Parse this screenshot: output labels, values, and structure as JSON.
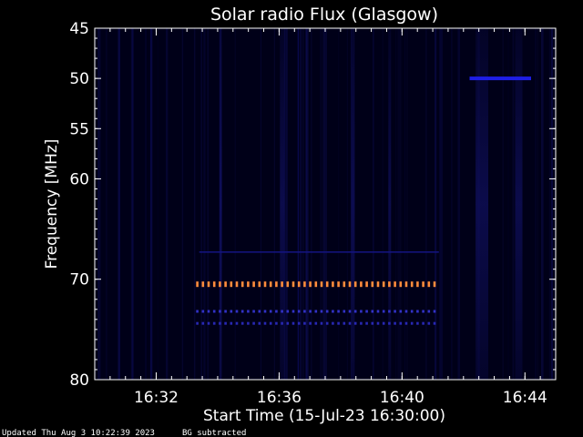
{
  "chart_data": {
    "type": "heatmap",
    "title": "Solar radio Flux (Glasgow)",
    "xlabel": "Start Time (15-Jul-23 16:30:00)",
    "ylabel": "Frequency [MHz]",
    "x_unit": "minutes after 16:30:00",
    "xlim": [
      0,
      15
    ],
    "ylim": [
      45,
      80
    ],
    "y_scale": "linear, frequency increasing downward",
    "x_ticks": [
      {
        "value": 2,
        "label": "16:32"
      },
      {
        "value": 6,
        "label": "16:36"
      },
      {
        "value": 10,
        "label": "16:40"
      },
      {
        "value": 14,
        "label": "16:44"
      }
    ],
    "y_ticks": [
      {
        "value": 45,
        "label": "45"
      },
      {
        "value": 50,
        "label": "50"
      },
      {
        "value": 55,
        "label": "55"
      },
      {
        "value": 60,
        "label": "60"
      },
      {
        "value": 70,
        "label": "70"
      },
      {
        "value": 80,
        "label": "80"
      }
    ],
    "colors": {
      "background": "#000000",
      "plot_background": "#000018",
      "axes": "#ffffff",
      "weak_emission": "#0a0ab4",
      "strong_emission": "#ff8c3c"
    },
    "features": [
      {
        "kind": "horizontal band",
        "freq_mhz": 50,
        "t_start": 12.2,
        "t_end": 14.2,
        "intensity": "medium",
        "color": "#1e1ee6"
      },
      {
        "kind": "dashed band",
        "freq_mhz": 70.5,
        "t_start": 3.3,
        "t_end": 11.2,
        "intensity": "high",
        "color": "#ff8c3c"
      },
      {
        "kind": "dashed band",
        "freq_mhz": 73.2,
        "t_start": 3.3,
        "t_end": 11.2,
        "intensity": "low",
        "color": "#3232c8"
      },
      {
        "kind": "dashed band",
        "freq_mhz": 74.4,
        "t_start": 3.3,
        "t_end": 11.2,
        "intensity": "low",
        "color": "#2828b4"
      },
      {
        "kind": "faint line",
        "freq_mhz": 67.3,
        "t_start": 3.4,
        "t_end": 11.2,
        "intensity": "low",
        "color": "#141482"
      }
    ]
  },
  "footer": {
    "updated": "Updated Thu Aug  3 10:22:39 2023",
    "note": "BG subtracted"
  }
}
